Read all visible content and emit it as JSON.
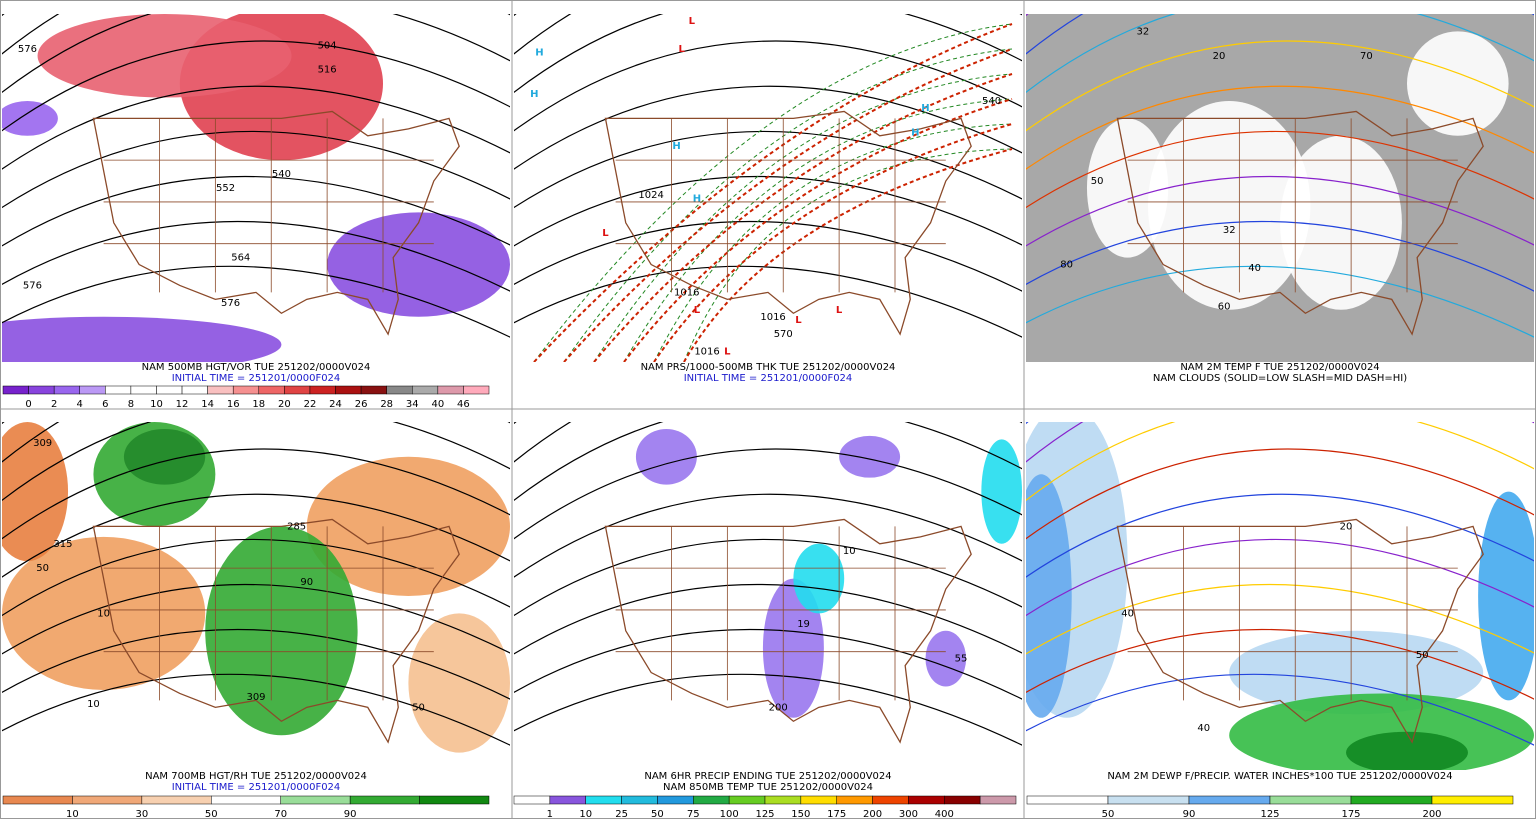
{
  "panels": [
    {
      "caption": [
        "NAM 500MB HGT/VOR TUE 251202/0000V024",
        "INITIAL TIME = 251201/0000F024"
      ],
      "colorbar": [
        0,
        2,
        4,
        6,
        8,
        10,
        12,
        14,
        16,
        18,
        20,
        22,
        24,
        26,
        28,
        34,
        40,
        46
      ],
      "map_labels": [
        "576",
        "504",
        "516",
        "552",
        "540",
        "564",
        "576",
        "576"
      ]
    },
    {
      "caption": [
        "NAM PRS/1000-500MB THK TUE 251202/0000V024",
        "INITIAL TIME = 251201/0000F024"
      ],
      "colorbar": [],
      "map_labels": [
        "H",
        "H",
        "H",
        "H",
        "H",
        "H",
        "L",
        "L",
        "L",
        "L",
        "L",
        "L",
        "L",
        "1024",
        "1016",
        "1016",
        "1016",
        "540",
        "570"
      ]
    },
    {
      "caption": [
        "NAM 2M TEMP F TUE 251202/0000V024",
        "NAM CLOUDS (SOLID=LOW SLASH=MID DASH=HI)"
      ],
      "colorbar": [],
      "map_labels": [
        "32",
        "32",
        "50",
        "70",
        "80",
        "60",
        "40",
        "20"
      ]
    },
    {
      "caption": [
        "NAM 700MB HGT/RH TUE 251202/0000V024",
        "INITIAL TIME = 251201/0000F024"
      ],
      "colorbar": [
        10,
        30,
        50,
        70,
        90
      ],
      "map_labels": [
        "309",
        "315",
        "50",
        "10",
        "10",
        "90",
        "309",
        "50",
        "285"
      ]
    },
    {
      "caption": [
        "NAM 6HR PRECIP ENDING TUE 251202/0000V024",
        "NAM 850MB TEMP TUE 251202/0000V024"
      ],
      "colorbar": [
        1,
        10,
        25,
        50,
        75,
        100,
        125,
        150,
        175,
        200,
        300,
        400
      ],
      "map_labels": [
        "200",
        "10",
        "19",
        "55"
      ]
    },
    {
      "caption": [
        "NAM 2M DEWP F/PRECIP. WATER INCHES*100 TUE 251202/0000V024"
      ],
      "colorbar": [
        50,
        90,
        125,
        175,
        200
      ],
      "map_labels": [
        "40",
        "50",
        "40",
        "20"
      ]
    }
  ]
}
